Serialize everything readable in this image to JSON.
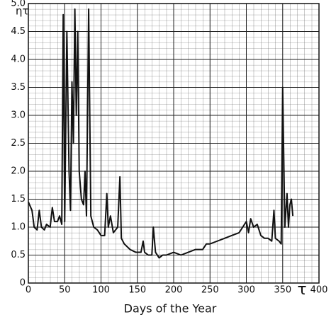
{
  "chart_data": {
    "type": "line",
    "y_label": "ητ",
    "x_label": "Days of the Year",
    "x_symbol": "τ",
    "xlim": [
      0,
      400
    ],
    "xticks": [
      0,
      50,
      100,
      150,
      200,
      250,
      300,
      350,
      400
    ],
    "ylim": [
      0,
      5
    ],
    "yticks": [
      0,
      0.5,
      {
        "value": 1,
        "label": "1.0"
      },
      1.5,
      {
        "value": 2,
        "label": "2.0"
      },
      2.5,
      {
        "value": 3,
        "label": "3.0"
      },
      3.5,
      {
        "value": 4,
        "label": "4.0"
      },
      4.5,
      {
        "value": 5,
        "label": "5.0"
      }
    ],
    "grid": true,
    "series": [
      {
        "color": "#111111",
        "x": [
          0,
          5,
          8,
          12,
          15,
          18,
          22,
          25,
          30,
          33,
          36,
          40,
          43,
          46,
          48,
          50,
          53,
          56,
          58,
          60,
          62,
          64,
          66,
          68,
          70,
          73,
          76,
          78,
          80,
          83,
          86,
          90,
          95,
          100,
          105,
          108,
          110,
          113,
          117,
          120,
          123,
          126,
          128,
          132,
          140,
          148,
          155,
          158,
          160,
          165,
          170,
          172,
          175,
          180,
          185,
          190,
          200,
          210,
          220,
          230,
          240,
          245,
          250,
          260,
          270,
          280,
          290,
          295,
          300,
          303,
          306,
          310,
          315,
          320,
          325,
          330,
          335,
          338,
          340,
          345,
          348,
          350,
          353,
          356,
          358,
          360,
          362,
          364
        ],
        "values": [
          1.45,
          1.3,
          1.0,
          0.95,
          1.3,
          1.0,
          0.95,
          1.05,
          1.0,
          1.35,
          1.1,
          1.1,
          1.2,
          1.05,
          4.8,
          1.1,
          4.5,
          2.0,
          1.3,
          3.6,
          2.5,
          4.9,
          3.0,
          4.5,
          2.0,
          1.5,
          1.4,
          2.0,
          1.2,
          4.9,
          1.2,
          1.0,
          0.95,
          0.85,
          0.85,
          1.6,
          1.0,
          1.2,
          0.9,
          0.95,
          1.0,
          1.9,
          0.8,
          0.7,
          0.6,
          0.55,
          0.55,
          0.75,
          0.55,
          0.5,
          0.5,
          1.0,
          0.55,
          0.45,
          0.5,
          0.5,
          0.55,
          0.5,
          0.55,
          0.6,
          0.6,
          0.7,
          0.7,
          0.75,
          0.8,
          0.85,
          0.9,
          1.0,
          1.1,
          0.9,
          1.15,
          1.0,
          1.05,
          0.85,
          0.8,
          0.8,
          0.75,
          1.3,
          0.8,
          0.75,
          0.7,
          3.5,
          1.0,
          1.6,
          1.0,
          1.4,
          1.5,
          1.2
        ]
      }
    ]
  }
}
